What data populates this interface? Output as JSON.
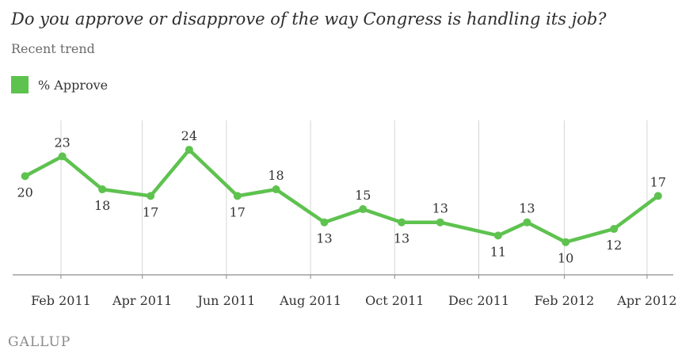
{
  "header": {
    "title": "Do you approve or disapprove of the way Congress is handling its job?",
    "subtitle": "Recent trend"
  },
  "legend": {
    "label": "% Approve"
  },
  "colors": {
    "series": "#5ec24f",
    "gridline": "#d6d6d6",
    "axis": "#8c8c8c"
  },
  "logo": {
    "text": "GALLUP"
  },
  "chart_data": {
    "type": "line",
    "title": "Do you approve or disapprove of the way Congress is handling its job?",
    "subtitle": "Recent trend",
    "xlabel": "",
    "ylabel": "",
    "grid": "vertical",
    "legend_position": "top-left",
    "x_ticks": [
      "Feb 2011",
      "Apr 2011",
      "Jun 2011",
      "Aug 2011",
      "Oct 2011",
      "Dec 2011",
      "Feb 2012",
      "Apr 2012"
    ],
    "x": [
      "2011-01-06",
      "2011-02-02",
      "2011-03-03",
      "2011-04-07",
      "2011-05-05",
      "2011-06-09",
      "2011-07-07",
      "2011-08-11",
      "2011-09-08",
      "2011-10-06",
      "2011-11-03",
      "2011-12-15",
      "2012-01-05",
      "2012-02-02",
      "2012-03-08",
      "2012-04-09"
    ],
    "series": [
      {
        "name": "% Approve",
        "values": [
          20,
          23,
          18,
          17,
          24,
          17,
          18,
          13,
          15,
          13,
          13,
          11,
          13,
          10,
          12,
          17
        ],
        "label_positions": [
          "below",
          "above",
          "below",
          "below",
          "above",
          "below",
          "above",
          "below",
          "above",
          "below",
          "above",
          "below",
          "above",
          "below",
          "below",
          "above"
        ]
      }
    ]
  }
}
